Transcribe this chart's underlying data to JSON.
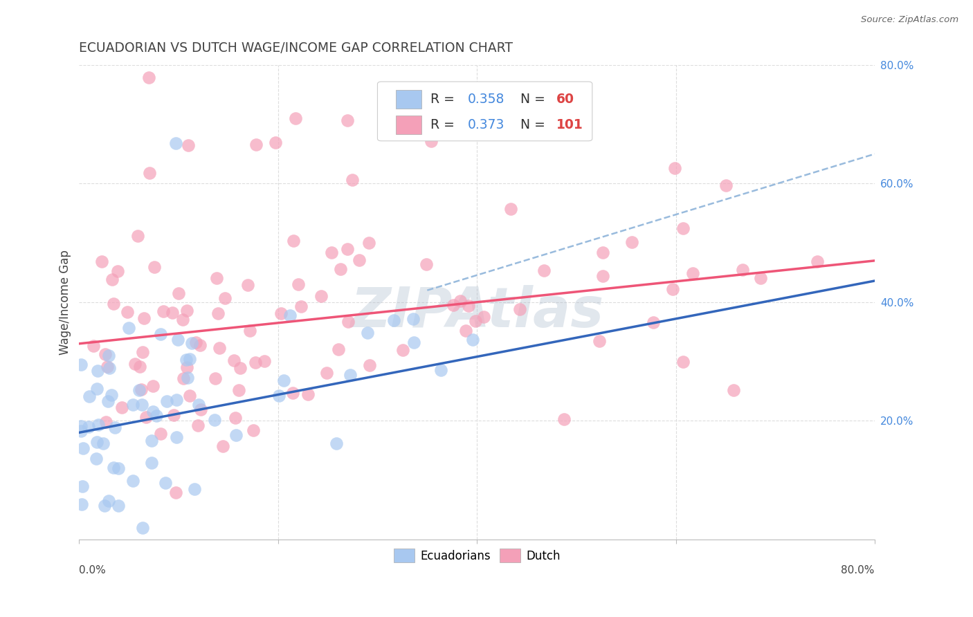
{
  "title": "ECUADORIAN VS DUTCH WAGE/INCOME GAP CORRELATION CHART",
  "source": "Source: ZipAtlas.com",
  "ylabel": "Wage/Income Gap",
  "watermark": "ZIPAtlas",
  "xmin": 0.0,
  "xmax": 0.8,
  "ymin": 0.0,
  "ymax": 0.8,
  "yticks_right": [
    0.2,
    0.4,
    0.6,
    0.8
  ],
  "ytick_labels_right": [
    "20.0%",
    "40.0%",
    "60.0%",
    "80.0%"
  ],
  "xtick_labels_edge": [
    "0.0%",
    "80.0%"
  ],
  "ecuadorians_color": "#A8C8F0",
  "dutch_color": "#F4A0B8",
  "R_ecuadorians": 0.358,
  "N_ecuadorians": 60,
  "R_dutch": 0.373,
  "N_dutch": 101,
  "trend_color_blue": "#3366BB",
  "trend_color_pink": "#EE5577",
  "trend_dashed_color": "#99BBDD",
  "grid_color": "#DDDDDD",
  "background_color": "#FFFFFF",
  "title_color": "#444444",
  "right_axis_color": "#4488DD",
  "watermark_color": "#AABBCC",
  "legend_color_R": "#4488DD",
  "legend_color_N": "#DD4444"
}
